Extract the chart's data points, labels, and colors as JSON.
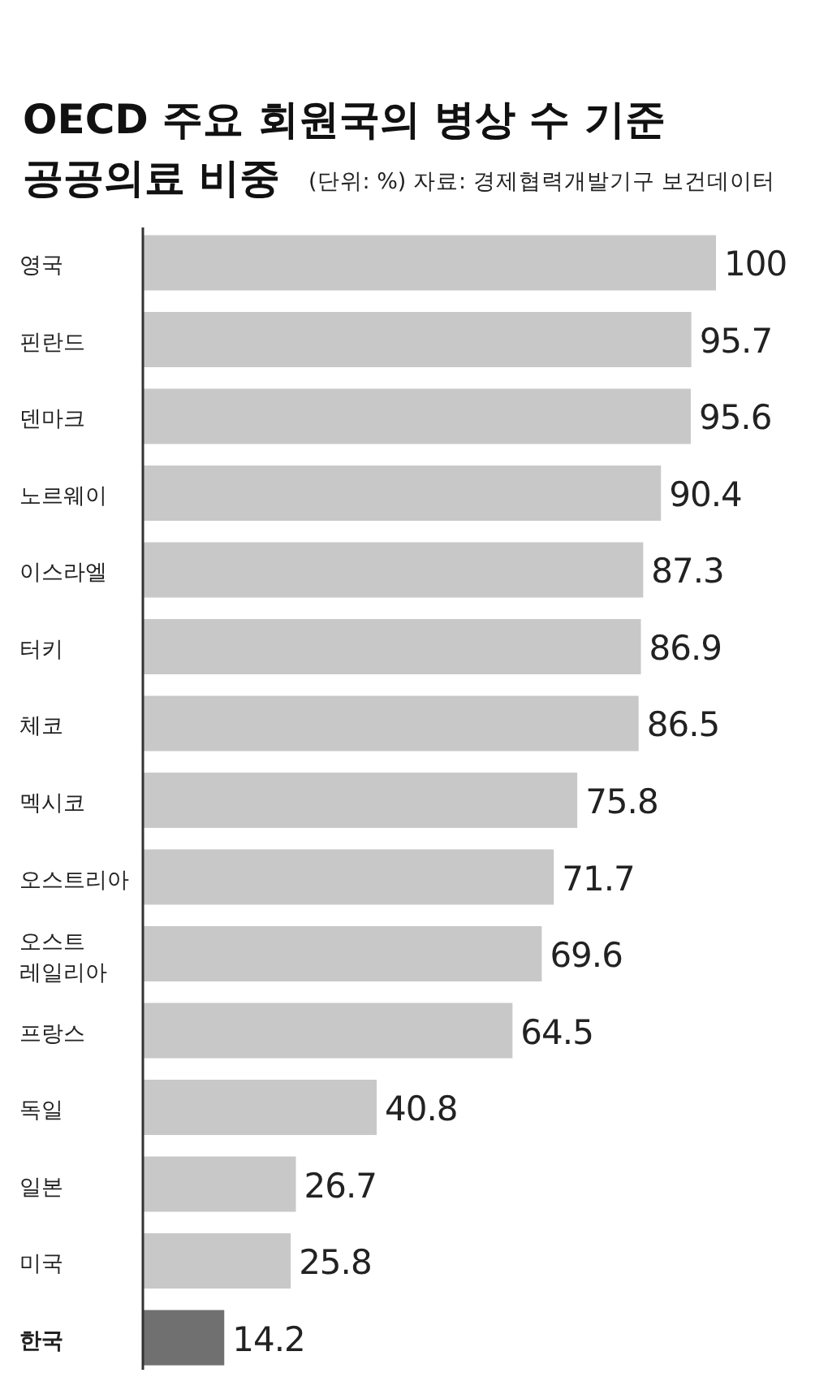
{
  "chart_data": {
    "type": "bar",
    "orientation": "horizontal",
    "title": "OECD 주요 회원국의 병상 수 기준 공공의료 비중",
    "subtitle": "(단위: %) 자료: 경제협력개발기구 보건데이터",
    "categories": [
      "영국",
      "핀란드",
      "덴마크",
      "노르웨이",
      "이스라엘",
      "터키",
      "체코",
      "멕시코",
      "오스트리아",
      "오스트레일리아",
      "프랑스",
      "독일",
      "일본",
      "미국",
      "한국"
    ],
    "values": [
      100,
      95.7,
      95.6,
      90.4,
      87.3,
      86.9,
      86.5,
      75.8,
      71.7,
      69.6,
      64.5,
      40.8,
      26.7,
      25.8,
      14.2
    ],
    "colors": [
      "#c8c8c8",
      "#c8c8c8",
      "#c8c8c8",
      "#c8c8c8",
      "#c8c8c8",
      "#c8c8c8",
      "#c8c8c8",
      "#c8c8c8",
      "#c8c8c8",
      "#c8c8c8",
      "#c8c8c8",
      "#c8c8c8",
      "#c8c8c8",
      "#c8c8c8",
      "#707070"
    ],
    "data_labels": true
  }
}
